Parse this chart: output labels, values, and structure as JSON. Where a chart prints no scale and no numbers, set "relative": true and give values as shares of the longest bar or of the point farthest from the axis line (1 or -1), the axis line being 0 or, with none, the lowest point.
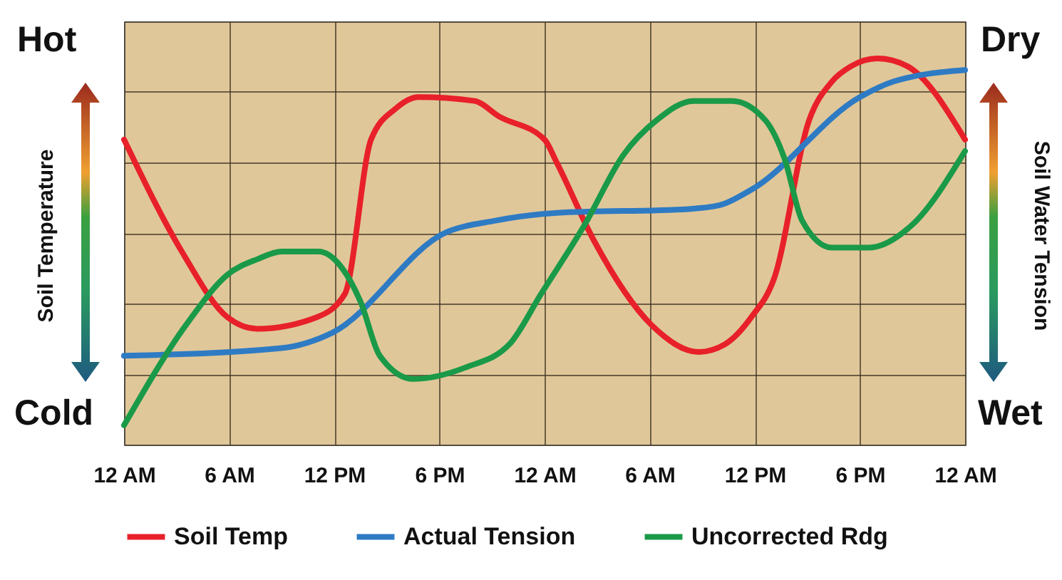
{
  "chart_data": {
    "type": "line",
    "relative": true,
    "ylabel": "Soil Temperature",
    "y2label": "Soil Water Tension",
    "annotations": [
      "Hot",
      "Cold",
      "Dry",
      "Wet"
    ],
    "xlim": [
      "--01-01T00:00",
      "--01-03T00:00"
    ],
    "xticks": [
      {
        "value": "--01-01T00:00",
        "label": "12 AM"
      },
      {
        "value": "--01-01T06:00",
        "label": "6 AM"
      },
      {
        "value": "--01-01T12:00",
        "label": "12 PM"
      },
      {
        "value": "--01-01T18:00",
        "label": "6 PM"
      },
      {
        "value": "--01-02T00:00",
        "label": "12 AM"
      },
      {
        "value": "--01-02T06:00",
        "label": "6 AM"
      },
      {
        "value": "--01-02T12:00",
        "label": "12 PM"
      },
      {
        "value": "--01-02T18:00",
        "label": "6 PM"
      },
      {
        "value": "--01-03T00:00",
        "label": "12 AM"
      }
    ],
    "grid": true,
    "legend": "bottom",
    "marker": "none",
    "line_style": "solid",
    "series": [
      {
        "name": "Soil Temp",
        "color": "#e8202a",
        "x": [
          "--01-01T00:00",
          "--01-01T03:18",
          "--01-01T05:54",
          "--01-01T07:36",
          "--01-01T11:00",
          "--01-01T12:36",
          "--01-01T14:06",
          "--01-01T15:30",
          "--01-01T16:48",
          "--01-01T20:00",
          "--01-01T21:24",
          "--01-02T00:00",
          "--01-02T00:42",
          "--01-02T02:48",
          "--01-02T06:06",
          "--01-02T08:48",
          "--01-02T10:18",
          "--01-02T11:48",
          "--01-02T13:06",
          "--01-02T15:06",
          "--01-02T16:24",
          "--01-02T17:30",
          "--01-02T19:00",
          "--01-02T20:42",
          "--01-03T00:00"
        ],
        "values": [
          0.79,
          0.5,
          0.33,
          0.3,
          0.33,
          0.39,
          0.79,
          0.87,
          0.9,
          0.89,
          0.85,
          0.79,
          0.73,
          0.53,
          0.31,
          0.24,
          0.26,
          0.33,
          0.43,
          0.84,
          0.94,
          0.98,
          1.0,
          0.98,
          0.79
        ]
      },
      {
        "name": "Actual Tension",
        "color": "#2e7bc4",
        "x": [
          "--01-01T00:00",
          "--01-01T09:00",
          "--01-01T11:54",
          "--01-01T18:24",
          "--01-01T21:12",
          "--01-02T00:42",
          "--01-02T08:12",
          "--01-02T10:00",
          "--01-02T11:48",
          "--01-02T18:00",
          "--01-02T19:54",
          "--01-03T00:00"
        ],
        "values": [
          0.23,
          0.25,
          0.29,
          0.55,
          0.58,
          0.6,
          0.61,
          0.62,
          0.66,
          0.9,
          0.94,
          0.97
        ]
      },
      {
        "name": "Uncorrected Rdg",
        "color": "#1a9a48",
        "x": [
          "--01-01T00:00",
          "--01-01T03:42",
          "--01-01T05:54",
          "--01-01T07:36",
          "--01-01T09:00",
          "--01-01T11:06",
          "--01-01T12:24",
          "--01-01T13:30",
          "--01-01T14:36",
          "--01-01T16:30",
          "--01-01T19:30",
          "--01-01T22:00",
          "--01-01T23:48",
          "--01-02T02:18",
          "--01-02T04:30",
          "--01-02T06:24",
          "--01-02T08:30",
          "--01-02T10:42",
          "--01-02T12:36",
          "--01-02T13:42",
          "--01-02T14:42",
          "--01-02T16:24",
          "--01-02T18:30",
          "--01-02T21:00",
          "--01-03T00:00"
        ],
        "values": [
          0.05,
          0.32,
          0.44,
          0.48,
          0.5,
          0.5,
          0.46,
          0.37,
          0.23,
          0.17,
          0.2,
          0.26,
          0.39,
          0.57,
          0.75,
          0.84,
          0.89,
          0.89,
          0.84,
          0.74,
          0.58,
          0.51,
          0.51,
          0.57,
          0.76
        ]
      }
    ]
  }
}
